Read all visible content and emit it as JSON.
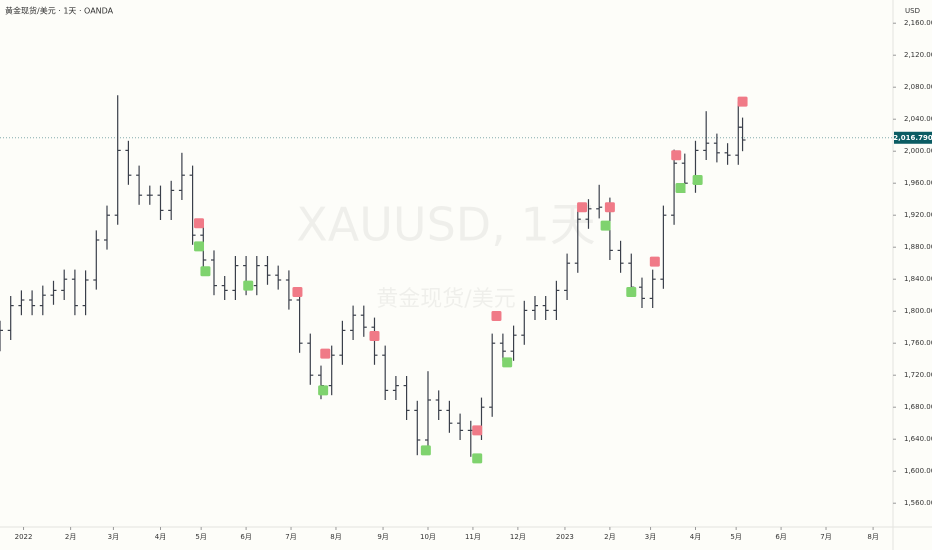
{
  "chart_data": {
    "type": "ohlc",
    "header": "黄金现货/美元 · 1天 · OANDA",
    "watermark": "XAUUSD, 1天",
    "watermark_sub": "黄金现货/美元",
    "y_unit": "USD",
    "up_color": "#3a3f4a",
    "down_color": "#3a3f4a",
    "x": [
      0,
      5,
      10,
      15,
      20,
      25,
      30,
      35,
      40,
      45,
      50,
      55,
      60,
      65,
      70,
      75,
      80,
      85,
      90,
      95,
      100,
      105,
      110,
      115,
      120,
      125,
      130,
      135,
      140,
      145,
      150,
      155,
      160,
      165,
      170,
      175,
      180,
      185,
      190,
      195,
      200,
      205,
      210,
      215,
      220,
      225,
      230,
      235,
      240,
      245,
      250,
      255,
      260,
      265,
      270,
      275,
      280,
      285,
      290,
      295,
      300,
      305,
      310,
      315,
      320,
      325,
      330,
      335,
      340,
      345,
      347
    ],
    "open": [
      1770,
      1776,
      1807,
      1814,
      1807,
      1820,
      1826,
      1840,
      1807,
      1839,
      1889,
      1920,
      2001,
      1970,
      1945,
      1945,
      1926,
      1951,
      1970,
      1895,
      1864,
      1832,
      1826,
      1857,
      1832,
      1857,
      1845,
      1839,
      1814,
      1760,
      1720,
      1707,
      1745,
      1776,
      1795,
      1780,
      1745,
      1701,
      1707,
      1676,
      1639,
      1689,
      1676,
      1660,
      1651,
      1651,
      1680,
      1760,
      1750,
      1770,
      1801,
      1807,
      1801,
      1826,
      1860,
      1915,
      1928,
      1930,
      1876,
      1860,
      1830,
      1816,
      1840,
      1920,
      1985,
      1960,
      2001,
      2010,
      1998,
      1995,
      2030
    ],
    "high": [
      1788,
      1819,
      1826,
      1826,
      1832,
      1838,
      1852,
      1852,
      1851,
      1901,
      1932,
      2070,
      2013,
      1982,
      1957,
      1957,
      1963,
      1998,
      1982,
      1907,
      1876,
      1844,
      1869,
      1869,
      1869,
      1869,
      1857,
      1851,
      1826,
      1772,
      1732,
      1757,
      1788,
      1807,
      1807,
      1792,
      1757,
      1719,
      1719,
      1688,
      1725,
      1701,
      1688,
      1672,
      1663,
      1692,
      1772,
      1772,
      1782,
      1813,
      1819,
      1819,
      1838,
      1872,
      1927,
      1940,
      1958,
      1942,
      1888,
      1872,
      1842,
      1852,
      1932,
      2002,
      1997,
      2013,
      2050,
      2022,
      2010,
      2062,
      2042
    ],
    "low": [
      1750,
      1764,
      1795,
      1795,
      1795,
      1808,
      1814,
      1795,
      1795,
      1827,
      1877,
      1908,
      1958,
      1933,
      1933,
      1914,
      1914,
      1939,
      1883,
      1852,
      1820,
      1814,
      1814,
      1820,
      1820,
      1833,
      1827,
      1802,
      1748,
      1708,
      1690,
      1695,
      1733,
      1764,
      1768,
      1733,
      1689,
      1689,
      1664,
      1620,
      1627,
      1664,
      1648,
      1639,
      1618,
      1639,
      1668,
      1738,
      1738,
      1758,
      1789,
      1789,
      1789,
      1814,
      1848,
      1903,
      1916,
      1864,
      1848,
      1818,
      1804,
      1804,
      1828,
      1908,
      1948,
      1948,
      1989,
      1986,
      1983,
      1983,
      2000
    ],
    "close": [
      1776,
      1807,
      1814,
      1807,
      1820,
      1826,
      1840,
      1807,
      1839,
      1889,
      1920,
      2001,
      1970,
      1945,
      1945,
      1926,
      1951,
      1970,
      1895,
      1864,
      1832,
      1826,
      1857,
      1832,
      1857,
      1845,
      1839,
      1814,
      1760,
      1720,
      1707,
      1745,
      1776,
      1795,
      1780,
      1745,
      1701,
      1707,
      1676,
      1639,
      1689,
      1676,
      1660,
      1651,
      1651,
      1680,
      1760,
      1750,
      1770,
      1801,
      1807,
      1801,
      1826,
      1860,
      1915,
      1928,
      1930,
      1876,
      1860,
      1830,
      1816,
      1840,
      1920,
      1985,
      1960,
      2001,
      2010,
      1998,
      1995,
      2030,
      2014
    ],
    "sell_markers": {
      "color": "#f07a87",
      "x": [
        93,
        139,
        152,
        175,
        223,
        232,
        272,
        285,
        306,
        316,
        347
      ],
      "values": [
        1910,
        1824,
        1747,
        1769,
        1651,
        1794,
        1930,
        1930,
        1862,
        1995,
        2062
      ]
    },
    "buy_markers": {
      "color": "#7fd36e",
      "x": [
        93,
        96,
        116,
        151,
        199,
        223,
        237,
        283,
        295,
        318,
        326
      ],
      "values": [
        1881,
        1850,
        1832,
        1701,
        1626,
        1616,
        1736,
        1907,
        1824,
        1954,
        1964
      ]
    },
    "last_price": {
      "value": 2016.79,
      "label": "2,016.790"
    },
    "last_price_color": "#0b5c63",
    "xlim": [
      0,
      417.3
    ],
    "xticks": [
      {
        "value": 11,
        "label": "2022"
      },
      {
        "value": 33,
        "label": "2月"
      },
      {
        "value": 53,
        "label": "3月"
      },
      {
        "value": 75,
        "label": "4月"
      },
      {
        "value": 94,
        "label": "5月"
      },
      {
        "value": 115,
        "label": "6月"
      },
      {
        "value": 136,
        "label": "7月"
      },
      {
        "value": 157,
        "label": "8月"
      },
      {
        "value": 179,
        "label": "9月"
      },
      {
        "value": 200,
        "label": "10月"
      },
      {
        "value": 221,
        "label": "11月"
      },
      {
        "value": 242,
        "label": "12月"
      },
      {
        "value": 264,
        "label": "2023"
      },
      {
        "value": 285,
        "label": "2月"
      },
      {
        "value": 304,
        "label": "3月"
      },
      {
        "value": 325,
        "label": "4月"
      },
      {
        "value": 344,
        "label": "5月"
      },
      {
        "value": 365,
        "label": "6月"
      },
      {
        "value": 386,
        "label": "7月"
      },
      {
        "value": 408,
        "label": "8月"
      }
    ],
    "ylim": [
      1539,
      2189
    ],
    "yticks": [
      {
        "value": 1560,
        "label": "1,560.000"
      },
      {
        "value": 1600,
        "label": "1,600.000"
      },
      {
        "value": 1640,
        "label": "1,640.000"
      },
      {
        "value": 1680,
        "label": "1,680.000"
      },
      {
        "value": 1720,
        "label": "1,720.000"
      },
      {
        "value": 1760,
        "label": "1,760.000"
      },
      {
        "value": 1800,
        "label": "1,800.000"
      },
      {
        "value": 1840,
        "label": "1,840.000"
      },
      {
        "value": 1880,
        "label": "1,880.000"
      },
      {
        "value": 1920,
        "label": "1,920.000"
      },
      {
        "value": 1960,
        "label": "1,960.000"
      },
      {
        "value": 2000,
        "label": "2,000.000"
      },
      {
        "value": 2040,
        "label": "2,040.000"
      },
      {
        "value": 2080,
        "label": "2,080.000"
      },
      {
        "value": 2120,
        "label": "2,120.000"
      },
      {
        "value": 2160,
        "label": "2,160.000"
      }
    ]
  }
}
